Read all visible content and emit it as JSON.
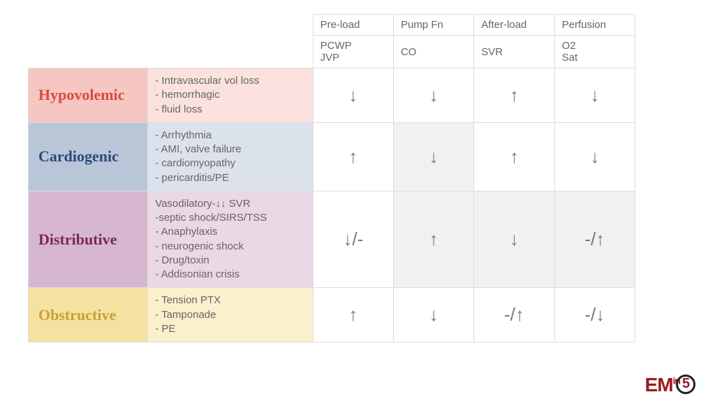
{
  "headers": {
    "group": [
      "Pre-load",
      "Pump Fn",
      "After-load",
      "Perfusion"
    ],
    "measure": [
      "PCWP\nJVP",
      "CO",
      "SVR",
      "O2\nSat"
    ]
  },
  "rows": [
    {
      "label": "Hypovolemic",
      "label_color": "#d84a3f",
      "bg": "#f6c6c1",
      "desc_bg": "#fbe2df",
      "desc": "- Intravascular vol loss\n- hemorrhagic\n- fluid loss",
      "cells": [
        "↓",
        "↓",
        "↑",
        "↓"
      ],
      "shaded": [
        false,
        false,
        false,
        false
      ]
    },
    {
      "label": "Cardiogenic",
      "label_color": "#2a4a7a",
      "bg": "#b9c6d8",
      "desc_bg": "#dbe2ec",
      "desc": "- Arrhythmia\n- AMI, valve failure\n- cardiomyopathy\n- pericarditis/PE",
      "cells": [
        "↑",
        "↓",
        "↑",
        "↓"
      ],
      "shaded": [
        false,
        true,
        false,
        false
      ]
    },
    {
      "label": "Distributive",
      "label_color": "#7a2a5c",
      "bg": "#d7b7cf",
      "desc_bg": "#ead8e5",
      "desc": "Vasodilatory-↓↓ SVR\n-septic shock/SIRS/TSS\n- Anaphylaxis\n- neurogenic shock\n- Drug/toxin\n- Addisonian crisis",
      "cells": [
        "↓/-",
        "↑",
        "↓",
        "-/↑"
      ],
      "shaded": [
        false,
        true,
        true,
        true
      ]
    },
    {
      "label": "Obstructive",
      "label_color": "#c9a038",
      "bg": "#f5e2a0",
      "desc_bg": "#faf0cd",
      "desc": "- Tension PTX\n- Tamponade\n- PE",
      "cells": [
        "↑",
        "↓",
        "-/↑",
        "-/↓"
      ],
      "shaded": [
        false,
        false,
        false,
        false
      ]
    }
  ],
  "logo": {
    "text": "EM",
    "sup": "in",
    "num": "5"
  }
}
